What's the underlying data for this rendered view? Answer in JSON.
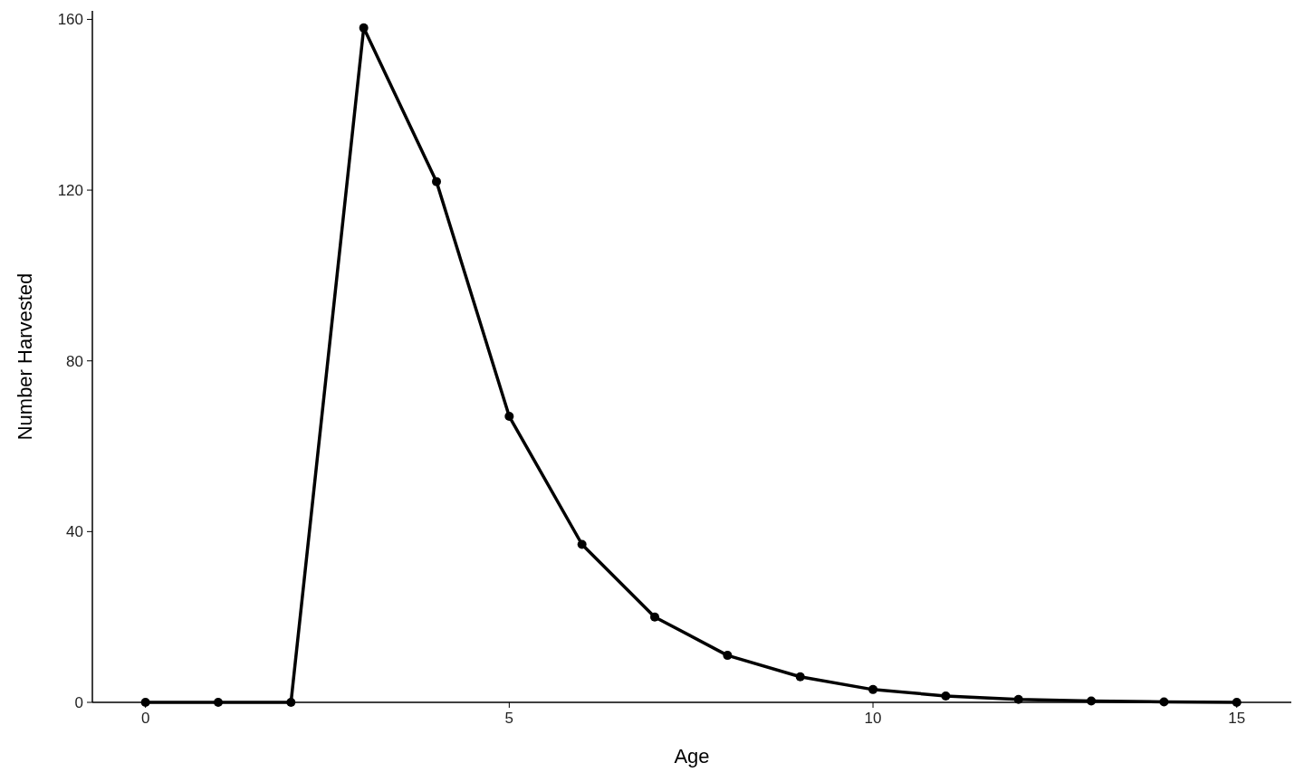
{
  "chart_data": {
    "type": "line",
    "xlabel": "Age",
    "ylabel": "Number Harvested",
    "x": [
      0,
      1,
      2,
      3,
      4,
      5,
      6,
      7,
      8,
      9,
      10,
      11,
      12,
      13,
      14,
      15
    ],
    "series": [
      {
        "color": "#000000",
        "values": [
          0,
          0,
          0,
          158,
          122,
          67,
          37,
          20,
          11,
          6,
          3,
          1.5,
          0.7,
          0.3,
          0.1,
          0
        ]
      }
    ],
    "xlim": [
      -0.73,
      15.75
    ],
    "xticks": [
      0,
      5,
      10,
      15
    ],
    "ylim": [
      0,
      162
    ],
    "yticks": [
      0,
      40,
      80,
      120,
      160
    ],
    "marker": "circle",
    "line_style": "solid",
    "grid": false
  }
}
